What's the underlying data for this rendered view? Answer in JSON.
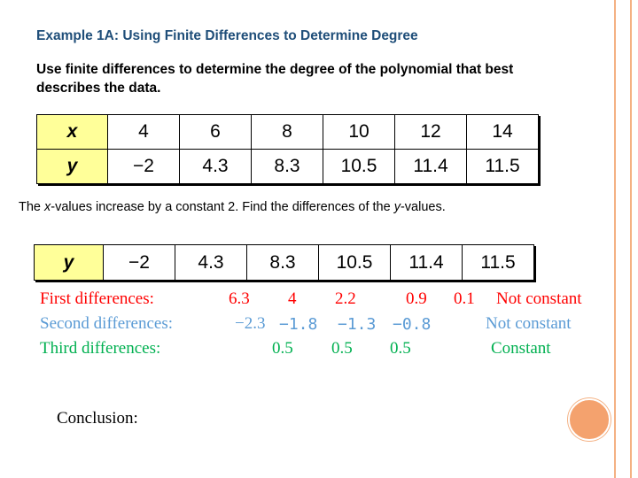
{
  "title": "Example 1A: Using Finite Differences to Determine Degree",
  "instruction": "Use finite differences to determine the degree of the polynomial that best describes the data.",
  "table1": {
    "x_label": "x",
    "y_label": "y",
    "x_values": [
      "4",
      "6",
      "8",
      "10",
      "12",
      "14"
    ],
    "y_values": [
      "−2",
      "4.3",
      "8.3",
      "10.5",
      "11.4",
      "11.5"
    ]
  },
  "note": {
    "pre": "The ",
    "x_italic": "x",
    "mid": "-values increase by a constant 2. Find the differences of the ",
    "y_italic": "y",
    "post": "-values."
  },
  "table2": {
    "y_label": "y",
    "y_values": [
      "−2",
      "4.3",
      "8.3",
      "10.5",
      "11.4",
      "11.5"
    ]
  },
  "differences": {
    "first": {
      "label": "First differences:",
      "values": [
        "6.3",
        "4",
        "2.2",
        "0.9",
        "0.1"
      ],
      "result": "Not constant"
    },
    "second": {
      "label": "Second differences:",
      "values": [
        "−2.3",
        "−1.8",
        "−1.3",
        "−0.8"
      ],
      "result": "Not constant"
    },
    "third": {
      "label": "Third differences:",
      "values": [
        "0.5",
        "0.5",
        "0.5"
      ],
      "result": "Constant"
    }
  },
  "conclusion": "Conclusion:",
  "colors": {
    "title": "#1f4e79",
    "header_fill": "#ffff99",
    "first_row": "#ff0000",
    "second_row": "#5b9bd5",
    "third_row": "#00b050",
    "accent": "#f4a26e"
  }
}
